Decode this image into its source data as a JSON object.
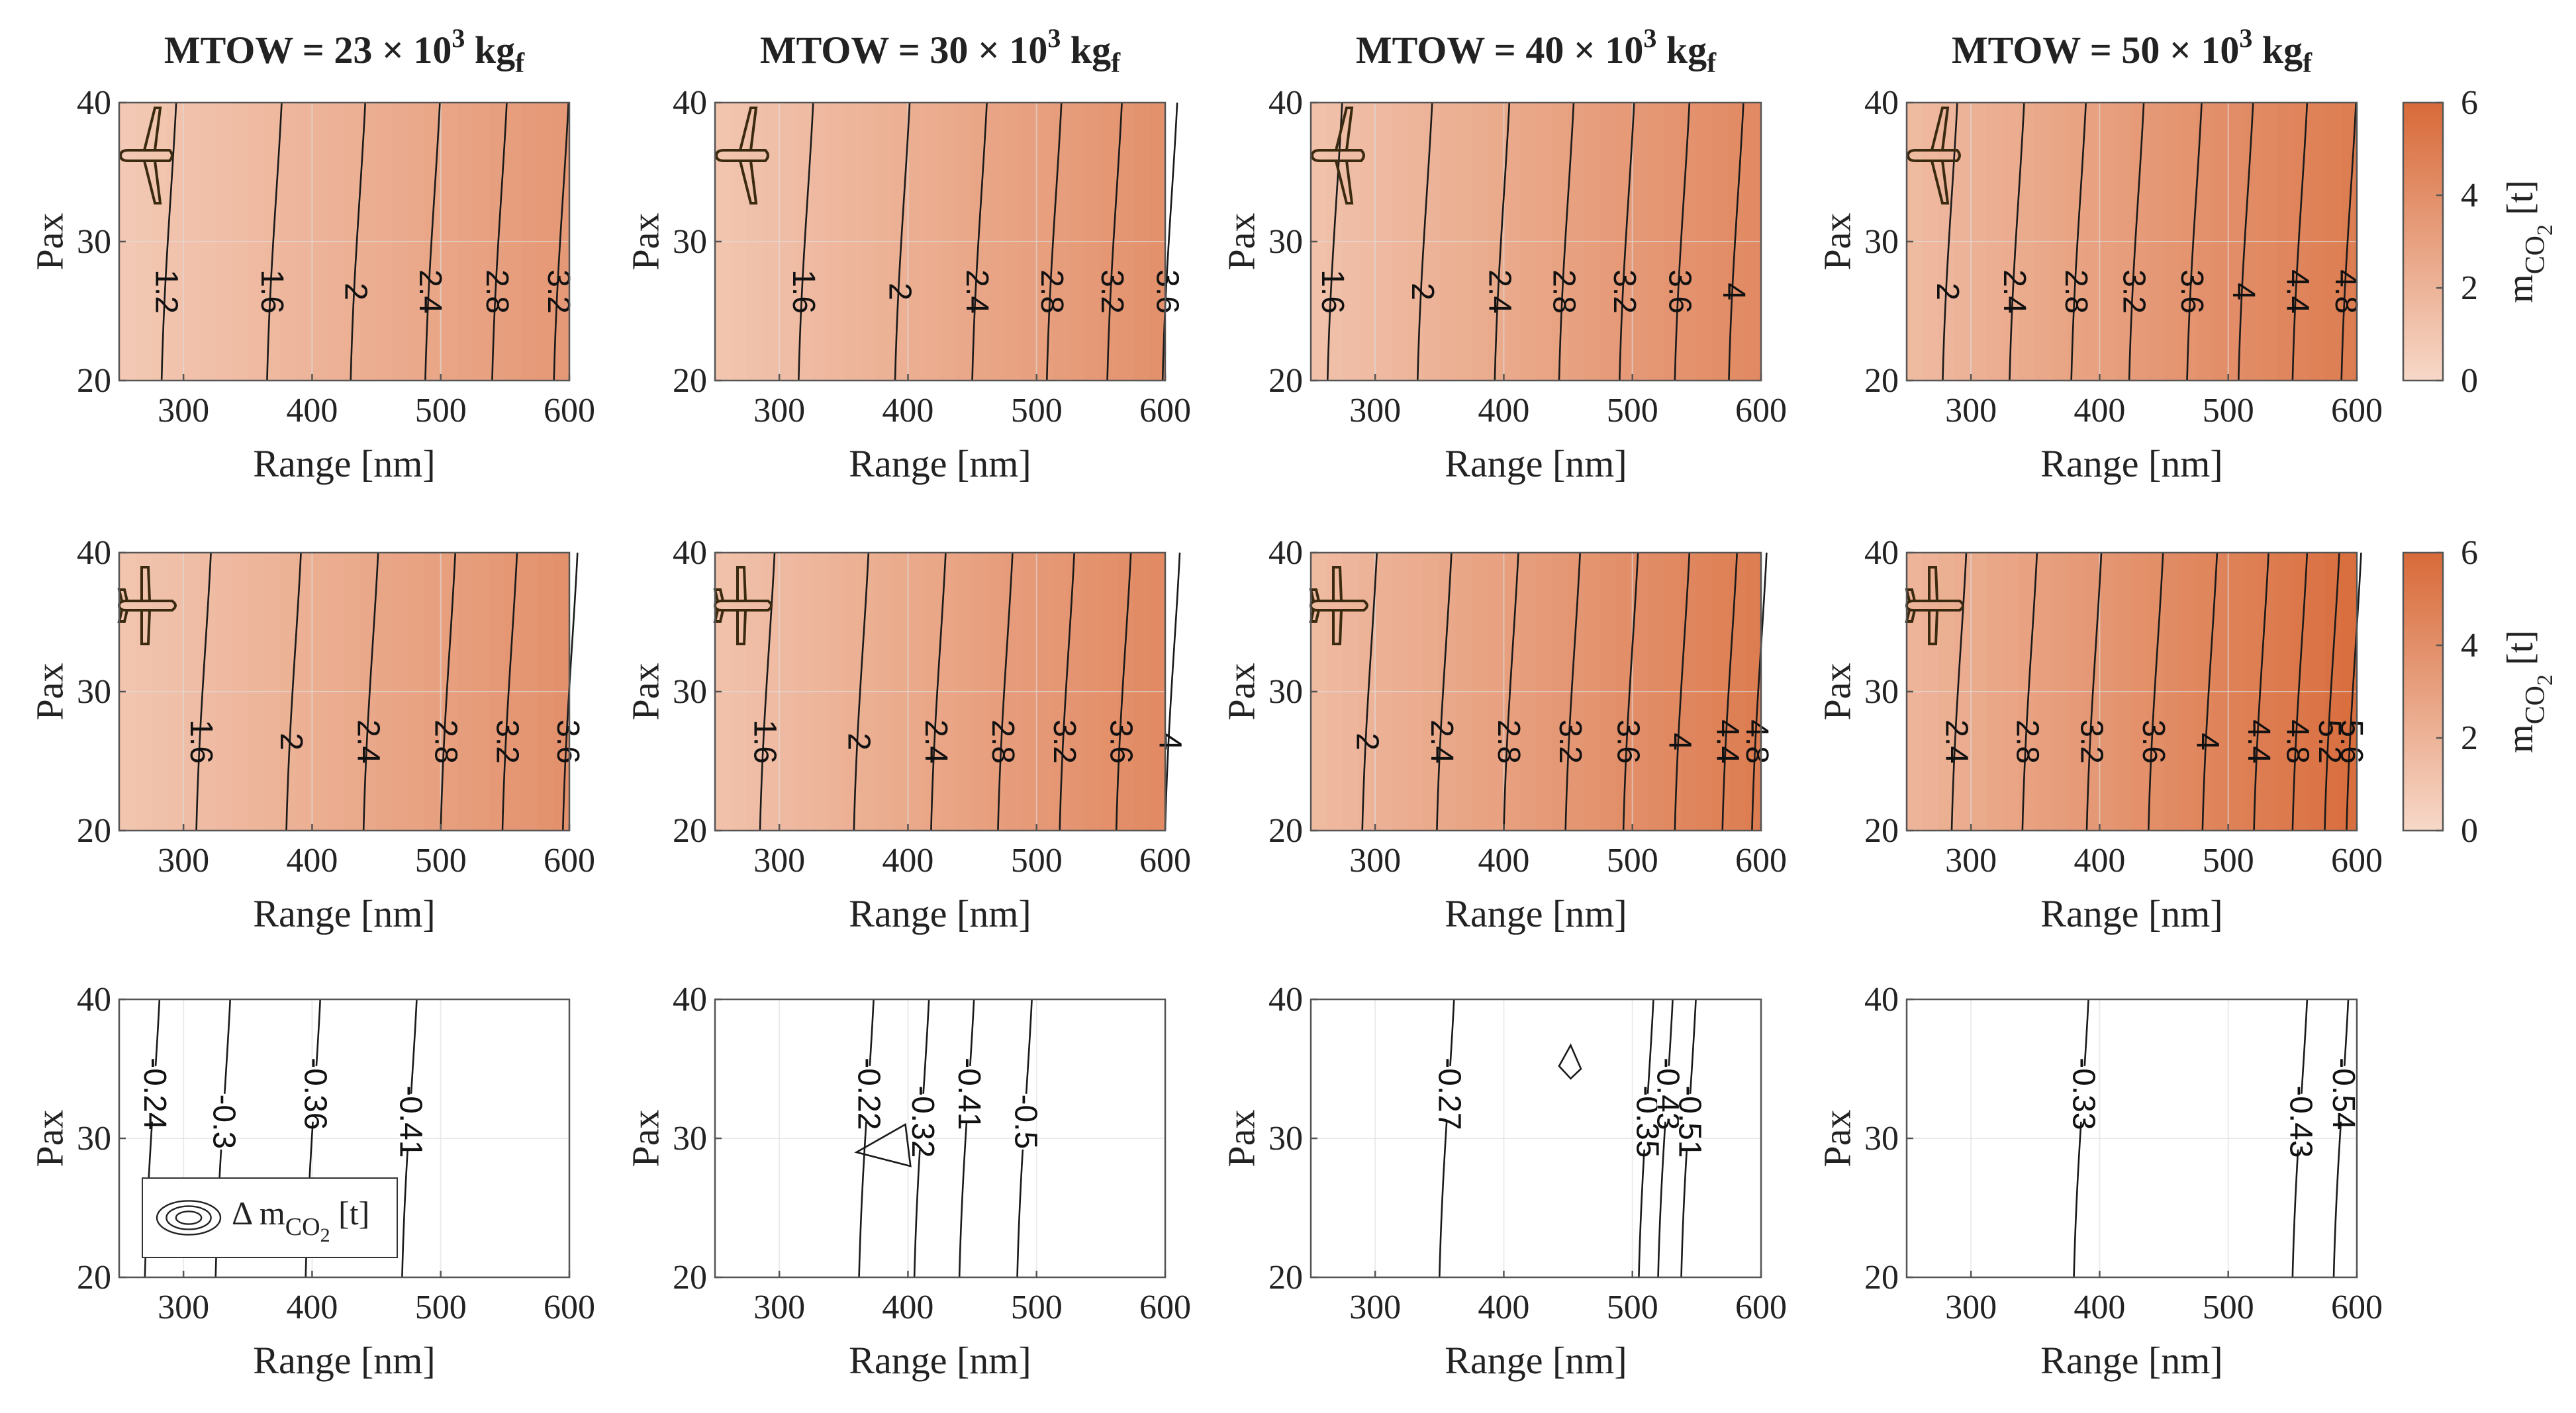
{
  "colors": {
    "low": "#f7d8c8",
    "high": "#d86a39",
    "line": "#1a1a1a",
    "grid": "#dddddd",
    "axis": "#555555"
  },
  "common": {
    "xlabel": "Range [nm]",
    "ylabel": "Pax",
    "xlim": [
      250,
      600
    ],
    "ylim": [
      20,
      40
    ],
    "xticks": [
      "300",
      "400",
      "500",
      "600"
    ],
    "yticks": [
      "20",
      "30",
      "40"
    ]
  },
  "titles": [
    {
      "main": "MTOW = 23 × 10",
      "sup": "3",
      "unit": " kg",
      "sub": "f"
    },
    {
      "main": "MTOW = 30 × 10",
      "sup": "3",
      "unit": " kg",
      "sub": "f"
    },
    {
      "main": "MTOW = 40 × 10",
      "sup": "3",
      "unit": " kg",
      "sub": "f"
    },
    {
      "main": "MTOW = 50 × 10",
      "sup": "3",
      "unit": " kg",
      "sub": "f"
    }
  ],
  "colorbars": [
    {
      "ticks": [
        "0",
        "2",
        "4",
        "6"
      ],
      "range": [
        0,
        6
      ],
      "label_main": "m",
      "label_sub": "CO",
      "label_sub2": "2",
      "label_unit": " [t]"
    },
    {
      "ticks": [
        "0",
        "2",
        "4",
        "6"
      ],
      "range": [
        0,
        6
      ],
      "label_main": "m",
      "label_sub": "CO",
      "label_sub2": "2",
      "label_unit": " [t]"
    }
  ],
  "legend": {
    "label_main": "Δ m",
    "label_sub": "CO",
    "label_sub2": "2",
    "label_unit": " [t]"
  },
  "chart_data": [
    {
      "type": "heatmap",
      "row": 1,
      "mtow": "23",
      "xlabel": "Range [nm]",
      "ylabel": "Pax",
      "xlim": [
        250,
        600
      ],
      "ylim": [
        20,
        40
      ],
      "zlim": [
        0,
        6
      ],
      "zmin": 0.8,
      "zmax": 3.5,
      "contours": [
        {
          "label": "1.2",
          "x": 283
        },
        {
          "label": "1.6",
          "x": 365
        },
        {
          "label": "2",
          "x": 430
        },
        {
          "label": "2.4",
          "x": 488
        },
        {
          "label": "2.8",
          "x": 540
        },
        {
          "label": "3.2",
          "x": 588
        }
      ]
    },
    {
      "type": "heatmap",
      "row": 1,
      "mtow": "30",
      "xlabel": "Range [nm]",
      "ylabel": "Pax",
      "xlim": [
        250,
        600
      ],
      "ylim": [
        20,
        40
      ],
      "zlim": [
        0,
        6
      ],
      "zmin": 1.0,
      "zmax": 3.9,
      "contours": [
        {
          "label": "1.6",
          "x": 315
        },
        {
          "label": "2",
          "x": 390
        },
        {
          "label": "2.4",
          "x": 450
        },
        {
          "label": "2.8",
          "x": 508
        },
        {
          "label": "3.2",
          "x": 555
        },
        {
          "label": "3.6",
          "x": 598
        }
      ]
    },
    {
      "type": "heatmap",
      "row": 1,
      "mtow": "40",
      "xlabel": "Range [nm]",
      "ylabel": "Pax",
      "xlim": [
        250,
        600
      ],
      "ylim": [
        20,
        40
      ],
      "zlim": [
        0,
        6
      ],
      "zmin": 1.2,
      "zmax": 4.3,
      "contours": [
        {
          "label": "1.6",
          "x": 263
        },
        {
          "label": "2",
          "x": 333
        },
        {
          "label": "2.4",
          "x": 393
        },
        {
          "label": "2.8",
          "x": 443
        },
        {
          "label": "3.2",
          "x": 490
        },
        {
          "label": "3.6",
          "x": 533
        },
        {
          "label": "4",
          "x": 575
        }
      ]
    },
    {
      "type": "heatmap",
      "row": 1,
      "mtow": "50",
      "xlabel": "Range [nm]",
      "ylabel": "Pax",
      "xlim": [
        250,
        600
      ],
      "ylim": [
        20,
        40
      ],
      "zlim": [
        0,
        6
      ],
      "zmin": 1.6,
      "zmax": 5.0,
      "contours": [
        {
          "label": "2",
          "x": 278
        },
        {
          "label": "2.4",
          "x": 330
        },
        {
          "label": "2.8",
          "x": 378
        },
        {
          "label": "3.2",
          "x": 423
        },
        {
          "label": "3.6",
          "x": 468
        },
        {
          "label": "4",
          "x": 508
        },
        {
          "label": "4.4",
          "x": 550
        },
        {
          "label": "4.8",
          "x": 588
        }
      ]
    },
    {
      "type": "heatmap",
      "row": 2,
      "mtow": "23",
      "xlabel": "Range [nm]",
      "ylabel": "Pax",
      "xlim": [
        250,
        600
      ],
      "ylim": [
        20,
        40
      ],
      "zlim": [
        0,
        6
      ],
      "zmin": 1.0,
      "zmax": 3.9,
      "contours": [
        {
          "label": "1.6",
          "x": 310
        },
        {
          "label": "2",
          "x": 380
        },
        {
          "label": "2.4",
          "x": 440
        },
        {
          "label": "2.8",
          "x": 500
        },
        {
          "label": "3.2",
          "x": 548
        },
        {
          "label": "3.6",
          "x": 595
        }
      ]
    },
    {
      "type": "heatmap",
      "row": 2,
      "mtow": "30",
      "xlabel": "Range [nm]",
      "ylabel": "Pax",
      "xlim": [
        250,
        600
      ],
      "ylim": [
        20,
        40
      ],
      "zlim": [
        0,
        6
      ],
      "zmin": 1.2,
      "zmax": 4.3,
      "contours": [
        {
          "label": "1.6",
          "x": 285
        },
        {
          "label": "2",
          "x": 358
        },
        {
          "label": "2.4",
          "x": 418
        },
        {
          "label": "2.8",
          "x": 470
        },
        {
          "label": "3.2",
          "x": 518
        },
        {
          "label": "3.6",
          "x": 562
        },
        {
          "label": "4",
          "x": 600
        }
      ]
    },
    {
      "type": "heatmap",
      "row": 2,
      "mtow": "40",
      "xlabel": "Range [nm]",
      "ylabel": "Pax",
      "xlim": [
        250,
        600
      ],
      "ylim": [
        20,
        40
      ],
      "zlim": [
        0,
        6
      ],
      "zmin": 1.6,
      "zmax": 5.0,
      "contours": [
        {
          "label": "2",
          "x": 290
        },
        {
          "label": "2.4",
          "x": 348
        },
        {
          "label": "2.8",
          "x": 400
        },
        {
          "label": "3.2",
          "x": 448
        },
        {
          "label": "3.6",
          "x": 493
        },
        {
          "label": "4",
          "x": 533
        },
        {
          "label": "4.4",
          "x": 570
        },
        {
          "label": "4.8",
          "x": 593
        }
      ]
    },
    {
      "type": "heatmap",
      "row": 2,
      "mtow": "50",
      "xlabel": "Range [nm]",
      "ylabel": "Pax",
      "xlim": [
        250,
        600
      ],
      "ylim": [
        20,
        40
      ],
      "zlim": [
        0,
        6
      ],
      "zmin": 1.9,
      "zmax": 5.8,
      "contours": [
        {
          "label": "2.4",
          "x": 285
        },
        {
          "label": "2.8",
          "x": 340
        },
        {
          "label": "3.2",
          "x": 390
        },
        {
          "label": "3.6",
          "x": 438
        },
        {
          "label": "4",
          "x": 480
        },
        {
          "label": "4.4",
          "x": 520
        },
        {
          "label": "4.8",
          "x": 550
        },
        {
          "label": "5.2",
          "x": 575
        },
        {
          "label": "5.6",
          "x": 592
        }
      ]
    },
    {
      "type": "contour",
      "row": 3,
      "mtow": "23",
      "xlabel": "Range [nm]",
      "ylabel": "Pax",
      "xlim": [
        250,
        600
      ],
      "ylim": [
        20,
        40
      ],
      "contours": [
        {
          "label": "-0.24",
          "x": 270
        },
        {
          "label": "-0.3",
          "x": 325
        },
        {
          "label": "-0.36",
          "x": 395
        },
        {
          "label": "-0.41",
          "x": 470
        }
      ]
    },
    {
      "type": "contour",
      "row": 3,
      "mtow": "30",
      "xlabel": "Range [nm]",
      "ylabel": "Pax",
      "xlim": [
        250,
        600
      ],
      "ylim": [
        20,
        40
      ],
      "contours": [
        {
          "label": "-0.22",
          "x": 362
        },
        {
          "label": "-0.32",
          "x": 405
        },
        {
          "label": "-0.41",
          "x": 440
        },
        {
          "label": "-0.5",
          "x": 485
        }
      ]
    },
    {
      "type": "contour",
      "row": 3,
      "mtow": "40",
      "xlabel": "Range [nm]",
      "ylabel": "Pax",
      "xlim": [
        250,
        600
      ],
      "ylim": [
        20,
        40
      ],
      "contours": [
        {
          "label": "-0.27",
          "x": 350
        },
        {
          "label": "-0.35",
          "x": 505
        },
        {
          "label": "-0.43",
          "x": 520
        },
        {
          "label": "-0.51",
          "x": 538
        }
      ]
    },
    {
      "type": "contour",
      "row": 3,
      "mtow": "50",
      "xlabel": "Range [nm]",
      "ylabel": "Pax",
      "xlim": [
        250,
        600
      ],
      "ylim": [
        20,
        40
      ],
      "contours": [
        {
          "label": "-0.33",
          "x": 380
        },
        {
          "label": "-0.43",
          "x": 550
        },
        {
          "label": "-0.54",
          "x": 582
        }
      ]
    }
  ]
}
